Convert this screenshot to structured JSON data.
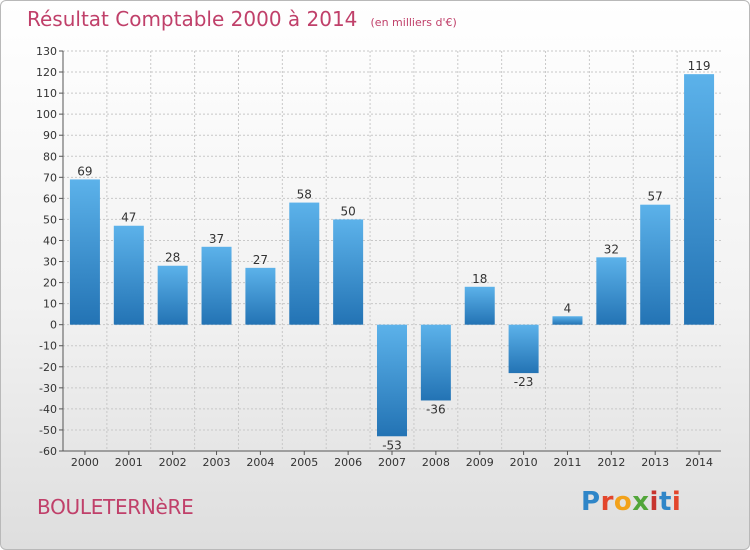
{
  "header": {
    "title": "Résultat Comptable 2000 à 2014",
    "unit": "(en milliers d'€)"
  },
  "footer": {
    "commune": "BOULETERNèRE",
    "logo": [
      "P",
      "r",
      "o",
      "x",
      "i",
      "t",
      "i"
    ],
    "logo_colors": [
      "#2f86c8",
      "#e3462c",
      "#f2a21b",
      "#52a63a",
      "#c7342e",
      "#2f86c8",
      "#e3462c"
    ]
  },
  "colors": {
    "bar_top": "#5cb2ea",
    "bar_bottom": "#2373b4",
    "grid": "#c8c8c8",
    "axis": "#555555",
    "accent": "#c0406a"
  },
  "chart_data": {
    "type": "bar",
    "title": "Résultat Comptable 2000 à 2014",
    "ylabel": "",
    "xlabel": "",
    "categories": [
      "2000",
      "2001",
      "2002",
      "2003",
      "2004",
      "2005",
      "2006",
      "2007",
      "2008",
      "2009",
      "2010",
      "2011",
      "2012",
      "2013",
      "2014"
    ],
    "values": [
      69,
      47,
      28,
      37,
      27,
      58,
      50,
      -53,
      -36,
      18,
      -23,
      4,
      32,
      57,
      119
    ],
    "ylim": [
      -60,
      130
    ],
    "yticks": [
      130,
      120,
      110,
      100,
      90,
      80,
      70,
      60,
      50,
      40,
      30,
      20,
      10,
      0,
      -10,
      -20,
      -30,
      -40,
      -50,
      -60
    ],
    "grid": true,
    "data_labels": true
  }
}
